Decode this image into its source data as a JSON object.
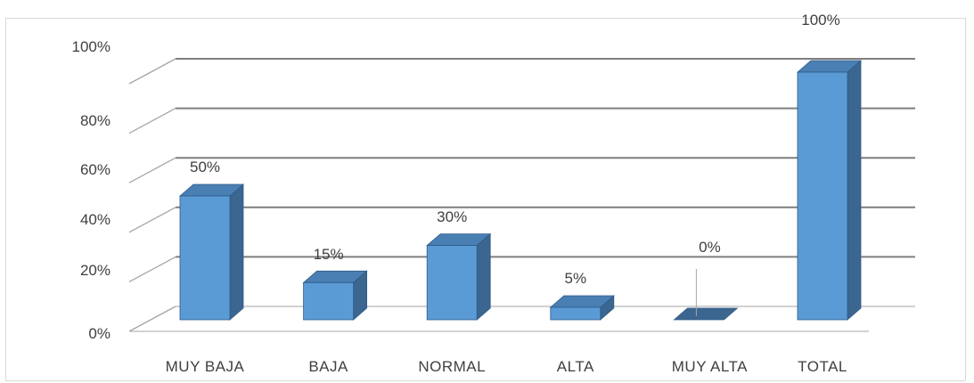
{
  "chart_data": {
    "type": "bar",
    "style": "3d-column",
    "categories": [
      "MUY BAJA",
      "BAJA",
      "NORMAL",
      "ALTA",
      "MUY ALTA",
      "TOTAL"
    ],
    "values": [
      50,
      15,
      30,
      5,
      0,
      100
    ],
    "data_labels": [
      "50%",
      "15%",
      "30%",
      "5%",
      "0%",
      "100%"
    ],
    "y_ticks": [
      "0%",
      "20%",
      "40%",
      "60%",
      "80%",
      "100%"
    ],
    "ylim": [
      0,
      100
    ],
    "grid": true,
    "colors": {
      "bar_front": "#5b9bd5",
      "bar_side": "#3b6690",
      "bar_top": "#4a7fb3",
      "bar_edge": "#2e5a87",
      "gridline": "#7f7f7f",
      "wall_line": "#a6a6a6",
      "text": "#404040"
    }
  }
}
